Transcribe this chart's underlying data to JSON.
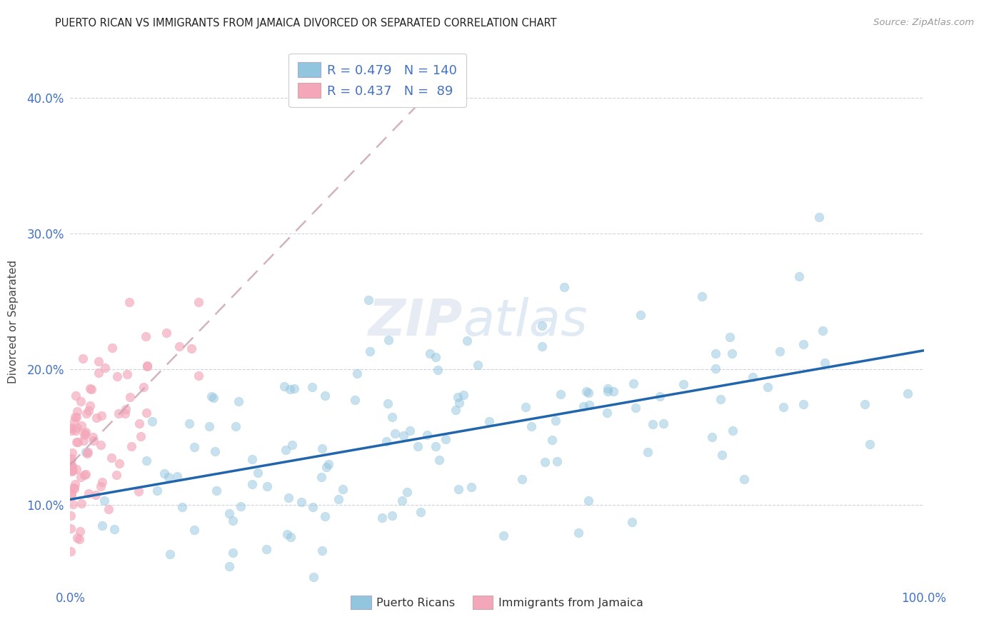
{
  "title": "PUERTO RICAN VS IMMIGRANTS FROM JAMAICA DIVORCED OR SEPARATED CORRELATION CHART",
  "source_text": "Source: ZipAtlas.com",
  "ylabel": "Divorced or Separated",
  "watermark_zip": "ZIP",
  "watermark_atlas": "atlas",
  "blue_color": "#92c5de",
  "pink_color": "#f4a7b9",
  "blue_line_color": "#2166ac",
  "pink_line_color": "#c8a0b0",
  "legend_label1": "Puerto Ricans",
  "legend_label2": "Immigrants from Jamaica",
  "r1": 0.479,
  "n1": 140,
  "r2": 0.437,
  "n2": 89,
  "xmin": 0.0,
  "xmax": 1.0,
  "ymin": 0.04,
  "ymax": 0.43,
  "title_fontsize": 11,
  "tick_color": "#4472c4",
  "grid_color": "#c8cfe0",
  "background_color": "#ffffff",
  "legend_text_color": "#4472c4"
}
